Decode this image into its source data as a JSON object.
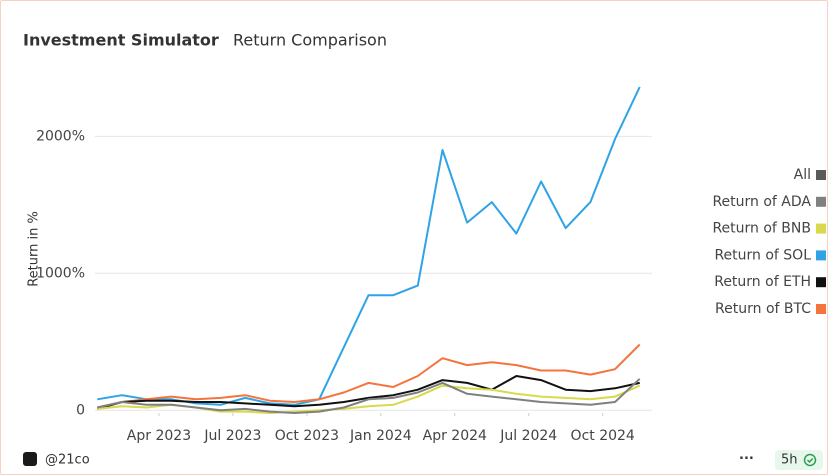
{
  "chart_data": {
    "type": "line",
    "title": "Investment Simulator",
    "subtitle": "Return Comparison",
    "y_label": "Return in %",
    "legend_all_label": "All",
    "legend_all_color": "#5a5a5a",
    "footer_account": "@21co",
    "footer_age": "5h",
    "x": [
      "2023-01",
      "2023-02",
      "2023-03",
      "2023-04",
      "2023-05",
      "2023-06",
      "2023-07",
      "2023-08",
      "2023-09",
      "2023-10",
      "2023-11",
      "2023-12",
      "2024-01",
      "2024-02",
      "2024-03",
      "2024-04",
      "2024-05",
      "2024-06",
      "2024-07",
      "2024-08",
      "2024-09",
      "2024-10",
      "2024-11"
    ],
    "xlim": [
      "2023-01",
      "2024-12"
    ],
    "xticks": [
      {
        "value": "2023-04",
        "label": "Apr 2023"
      },
      {
        "value": "2023-07",
        "label": "Jul 2023"
      },
      {
        "value": "2023-10",
        "label": "Oct 2023"
      },
      {
        "value": "2024-01",
        "label": "Jan 2024"
      },
      {
        "value": "2024-04",
        "label": "Apr 2024"
      },
      {
        "value": "2024-07",
        "label": "Jul 2024"
      },
      {
        "value": "2024-10",
        "label": "Oct 2024"
      }
    ],
    "ylim": [
      -20,
      2550
    ],
    "yticks": [
      0,
      {
        "value": 1000,
        "label": "1000%"
      },
      {
        "value": 2000,
        "label": "2000%"
      }
    ],
    "grid": true,
    "legend": "right",
    "series": [
      {
        "name": "Return of ADA",
        "color": "#808080",
        "values": [
          20,
          60,
          40,
          40,
          20,
          0,
          10,
          -10,
          -20,
          -10,
          20,
          80,
          90,
          130,
          200,
          120,
          100,
          80,
          60,
          50,
          40,
          60,
          230
        ]
      },
      {
        "name": "Return of BNB",
        "color": "#d8d94c",
        "values": [
          10,
          30,
          20,
          40,
          20,
          -10,
          -10,
          -20,
          -10,
          0,
          10,
          30,
          40,
          100,
          180,
          160,
          150,
          120,
          100,
          90,
          80,
          100,
          180
        ]
      },
      {
        "name": "Return of SOL",
        "color": "#2fa3e6",
        "values": [
          80,
          110,
          80,
          80,
          50,
          40,
          90,
          50,
          40,
          80,
          460,
          840,
          840,
          910,
          1900,
          1370,
          1520,
          1290,
          1670,
          1330,
          1520,
          1980,
          2360
        ]
      },
      {
        "name": "Return of ETH",
        "color": "#111111",
        "values": [
          10,
          60,
          70,
          70,
          60,
          60,
          50,
          40,
          30,
          40,
          60,
          90,
          110,
          150,
          220,
          200,
          150,
          250,
          220,
          150,
          140,
          160,
          200
        ]
      },
      {
        "name": "Return of BTC",
        "color": "#f4743b",
        "values": [
          20,
          60,
          80,
          100,
          80,
          90,
          110,
          70,
          60,
          80,
          130,
          200,
          170,
          250,
          380,
          330,
          350,
          330,
          290,
          290,
          260,
          300,
          480
        ]
      }
    ]
  }
}
